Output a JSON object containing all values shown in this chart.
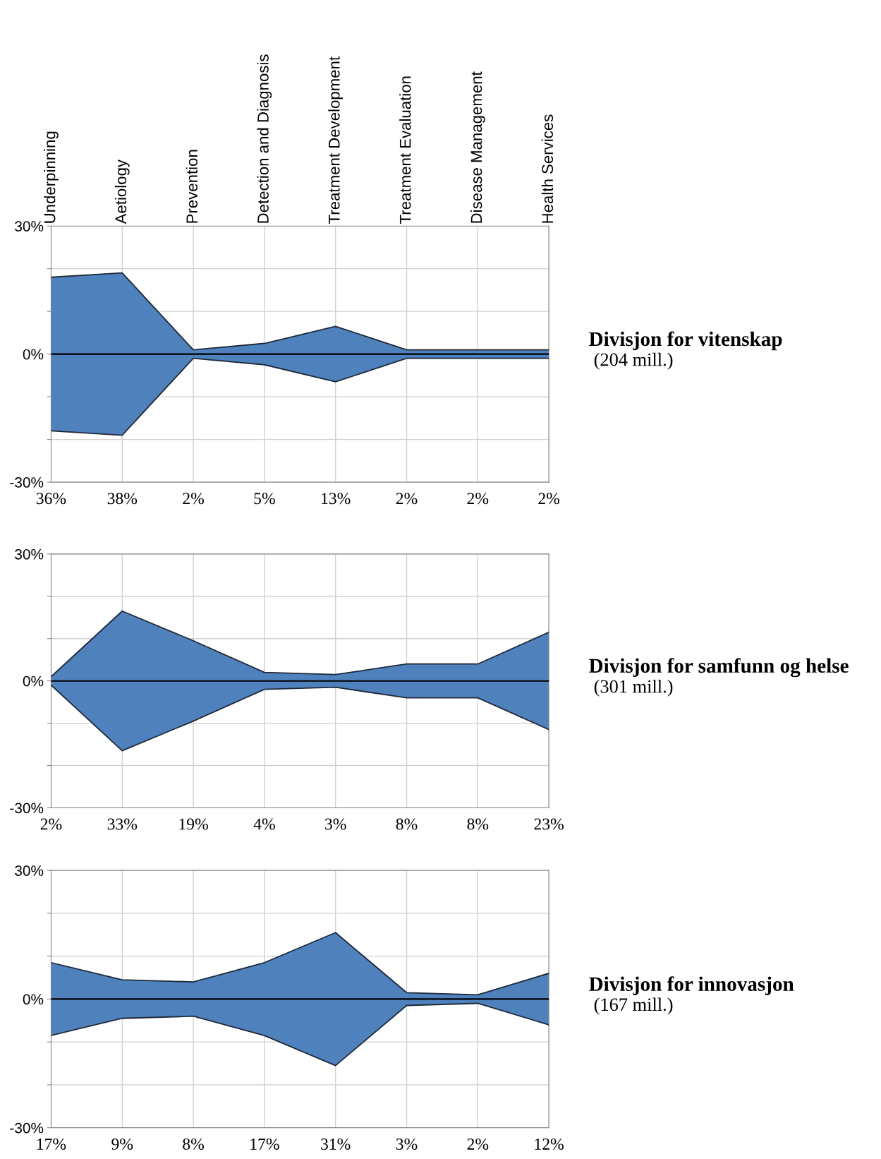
{
  "chart_data": [
    {
      "type": "area",
      "annotations": [
        "Divisjon for vitenskap",
        "(204 mill.)"
      ],
      "categories": [
        "Underpinning",
        "Aetiology",
        "Prevention",
        "Detection and Diagnosis",
        "Treatment Development",
        "Treatment Evaluation",
        "Disease Management",
        "Health Services"
      ],
      "series": [
        {
          "color": "#4f81bd",
          "values": [
            18,
            19,
            1,
            2.5,
            6.5,
            1,
            1,
            1
          ]
        },
        {
          "color": "#4f81bd",
          "values": [
            -18,
            -19,
            -1,
            -2.5,
            -6.5,
            -1,
            -1,
            -1
          ]
        }
      ],
      "value_labels": [
        "36%",
        "38%",
        "2%",
        "5%",
        "13%",
        "2%",
        "2%",
        "2%"
      ],
      "ylim": [
        -30,
        30
      ],
      "yticks": [
        {
          "value": -30,
          "label": "-30%"
        },
        {
          "value": -20,
          "label": null
        },
        {
          "value": -10,
          "label": null
        },
        {
          "value": 0,
          "label": "0%"
        },
        {
          "value": 10,
          "label": null
        },
        {
          "value": 20,
          "label": null
        },
        {
          "value": 30,
          "label": "30%"
        }
      ],
      "ref_lines": [
        {
          "axis": "y",
          "value": 0,
          "color": "#000000"
        }
      ],
      "grid": true
    },
    {
      "type": "area",
      "annotations": [
        "Divisjon for samfunn og helse",
        "(301 mill.)"
      ],
      "categories": [
        null,
        null,
        null,
        null,
        null,
        null,
        null,
        null
      ],
      "series": [
        {
          "color": "#4f81bd",
          "values": [
            1,
            16.5,
            9.5,
            2,
            1.5,
            4,
            4,
            11.5
          ]
        },
        {
          "color": "#4f81bd",
          "values": [
            -1,
            -16.5,
            -9.5,
            -2,
            -1.5,
            -4,
            -4,
            -11.5
          ]
        }
      ],
      "value_labels": [
        "2%",
        "33%",
        "19%",
        "4%",
        "3%",
        "8%",
        "8%",
        "23%"
      ],
      "ylim": [
        -30,
        30
      ],
      "yticks": [
        {
          "value": -30,
          "label": "-30%"
        },
        {
          "value": -20,
          "label": null
        },
        {
          "value": -10,
          "label": null
        },
        {
          "value": 0,
          "label": "0%"
        },
        {
          "value": 10,
          "label": null
        },
        {
          "value": 20,
          "label": null
        },
        {
          "value": 30,
          "label": "30%"
        }
      ],
      "ref_lines": [
        {
          "axis": "y",
          "value": 0,
          "color": "#000000"
        }
      ],
      "grid": true
    },
    {
      "type": "area",
      "annotations": [
        "Divisjon for innovasjon",
        "(167 mill.)"
      ],
      "categories": [
        null,
        null,
        null,
        null,
        null,
        null,
        null,
        null
      ],
      "series": [
        {
          "color": "#4f81bd",
          "values": [
            8.5,
            4.5,
            4,
            8.5,
            15.5,
            1.5,
            1,
            6
          ]
        },
        {
          "color": "#4f81bd",
          "values": [
            -8.5,
            -4.5,
            -4,
            -8.5,
            -15.5,
            -1.5,
            -1,
            -6
          ]
        }
      ],
      "value_labels": [
        "17%",
        "9%",
        "8%",
        "17%",
        "31%",
        "3%",
        "2%",
        "12%"
      ],
      "ylim": [
        -30,
        30
      ],
      "yticks": [
        {
          "value": -30,
          "label": "-30%"
        },
        {
          "value": -20,
          "label": null
        },
        {
          "value": -10,
          "label": null
        },
        {
          "value": 0,
          "label": "0%"
        },
        {
          "value": 10,
          "label": null
        },
        {
          "value": 20,
          "label": null
        },
        {
          "value": 30,
          "label": "30%"
        }
      ],
      "ref_lines": [
        {
          "axis": "y",
          "value": 0,
          "color": "#000000"
        }
      ],
      "grid": true
    }
  ]
}
